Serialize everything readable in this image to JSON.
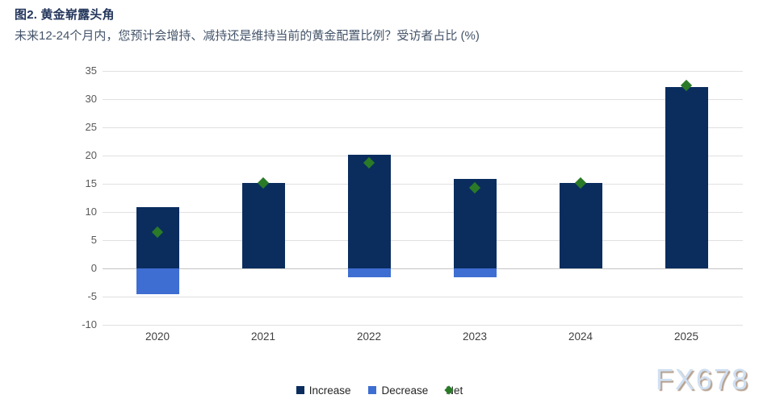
{
  "header": {
    "title": "图2. 黄金崭露头角",
    "subtitle": "未来12-24个月内，您预计会增持、减持还是维持当前的黄金配置比例？受访者占比 (%)"
  },
  "watermark": "FX678",
  "colors": {
    "increase": "#0a2d5e",
    "decrease": "#3e6ed2",
    "net": "#2a7a28",
    "gridline": "#e0e0e0",
    "zero_line": "#c4c4c4",
    "title_text": "#24365c",
    "subtitle_text": "#44546a",
    "axis_text": "#595959",
    "xlabel_text": "#3f3f3f",
    "legend_text": "#262626",
    "watermark_text": "#cfdff2",
    "watermark_shadow": "#b5a08e"
  },
  "legend": [
    {
      "label": "Increase",
      "marker": "square",
      "color": "#0a2d5e"
    },
    {
      "label": "Decrease",
      "marker": "square",
      "color": "#3e6ed2"
    },
    {
      "label": "Net",
      "marker": "diamond",
      "color": "#2a7a28"
    }
  ],
  "chart_data": {
    "type": "bar",
    "title": "图2. 黄金崭露头角",
    "subtitle": "未来12-24个月内，您预计会增持、减持还是维持当前的黄金配置比例？受访者占比 (%)",
    "categories": [
      "2020",
      "2021",
      "2022",
      "2023",
      "2024",
      "2025"
    ],
    "series": [
      {
        "name": "Increase",
        "type": "bar",
        "color": "#0a2d5e",
        "values": [
          10.8,
          15.2,
          20.1,
          15.8,
          15.1,
          32.2
        ]
      },
      {
        "name": "Decrease",
        "type": "bar",
        "color": "#3e6ed2",
        "values": [
          -4.5,
          0,
          -1.5,
          -1.5,
          0,
          0
        ]
      },
      {
        "name": "Net",
        "type": "point-diamond",
        "color": "#2a7a28",
        "values": [
          6.5,
          15.1,
          18.7,
          14.3,
          15.1,
          32.4
        ]
      }
    ],
    "ylim": [
      -10,
      35
    ],
    "y_ticks": [
      35,
      30,
      25,
      20,
      15,
      10,
      5,
      0,
      -5,
      -10
    ],
    "xlabel": "",
    "ylabel": "",
    "grid": true,
    "legend_position": "bottom"
  }
}
